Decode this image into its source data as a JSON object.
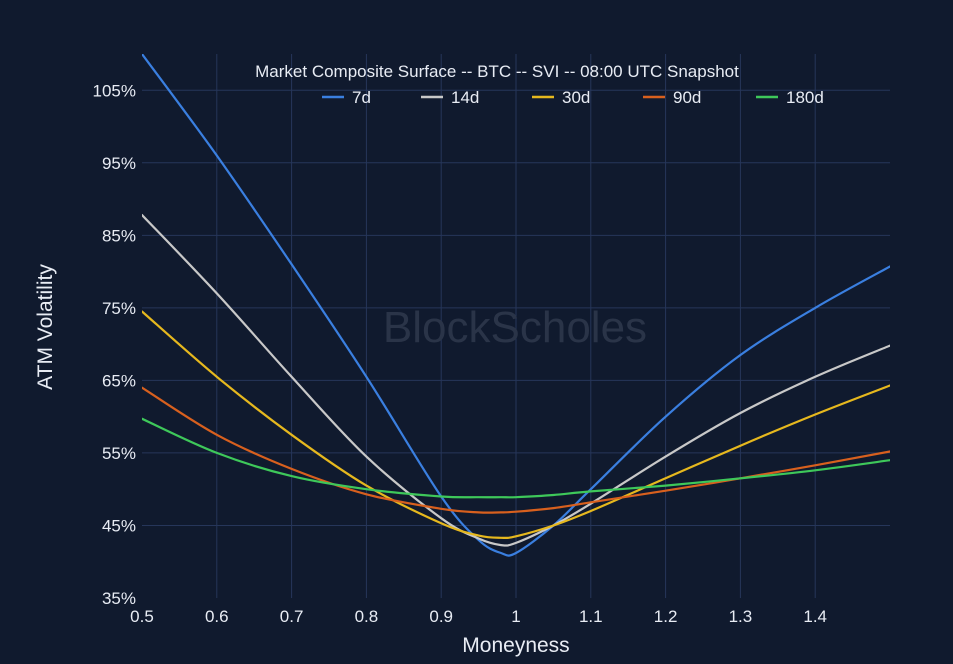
{
  "chart_data": {
    "type": "line",
    "title": "Market Composite Surface -- BTC -- SVI -- 08:00 UTC Snapshot",
    "xlabel": "Moneyness",
    "ylabel": "ATM Volatility",
    "xlim": [
      0.5,
      1.5
    ],
    "ylim": [
      35,
      110
    ],
    "xticks": [
      0.5,
      0.6,
      0.7,
      0.8,
      0.9,
      1.0,
      1.1,
      1.2,
      1.3,
      1.4
    ],
    "xtick_labels": [
      "0.5",
      "0.6",
      "0.7",
      "0.8",
      "0.9",
      "1",
      "1.1",
      "1.2",
      "1.3",
      "1.4"
    ],
    "yticks": [
      35,
      45,
      55,
      65,
      75,
      85,
      95,
      105
    ],
    "ytick_labels": [
      "35%",
      "45%",
      "55%",
      "65%",
      "75%",
      "85%",
      "95%",
      "105%"
    ],
    "grid": true,
    "legend_position": "top",
    "watermark": "BlockScholes",
    "series": [
      {
        "name": "7d",
        "color": "#3a7fe0",
        "x": [
          0.5,
          0.6,
          0.7,
          0.8,
          0.9,
          0.95,
          0.98,
          1.0,
          1.05,
          1.1,
          1.2,
          1.3,
          1.4,
          1.5
        ],
        "y": [
          110,
          96,
          81,
          65.5,
          49,
          43,
          41.2,
          41.2,
          45,
          50,
          60,
          68.5,
          75,
          80.7
        ]
      },
      {
        "name": "14d",
        "color": "#c8c8c8",
        "x": [
          0.5,
          0.6,
          0.7,
          0.8,
          0.9,
          0.95,
          0.98,
          1.0,
          1.05,
          1.1,
          1.2,
          1.3,
          1.4,
          1.5
        ],
        "y": [
          87.8,
          77,
          65.5,
          54.5,
          46,
          43.2,
          42.3,
          42.6,
          45,
          48,
          54.5,
          60.5,
          65.5,
          69.8
        ]
      },
      {
        "name": "30d",
        "color": "#e6b81e",
        "x": [
          0.5,
          0.6,
          0.7,
          0.8,
          0.9,
          0.95,
          0.98,
          1.0,
          1.05,
          1.1,
          1.2,
          1.3,
          1.4,
          1.5
        ],
        "y": [
          74.5,
          65.5,
          57.5,
          50.5,
          45.3,
          43.6,
          43.3,
          43.5,
          45,
          47,
          51.5,
          56,
          60.3,
          64.3
        ]
      },
      {
        "name": "90d",
        "color": "#d8601e",
        "x": [
          0.5,
          0.6,
          0.7,
          0.8,
          0.9,
          0.95,
          0.98,
          1.0,
          1.05,
          1.1,
          1.2,
          1.3,
          1.4,
          1.5
        ],
        "y": [
          64,
          57.5,
          52.8,
          49.3,
          47.3,
          46.8,
          46.8,
          46.9,
          47.4,
          48.2,
          49.8,
          51.5,
          53.3,
          55.2
        ]
      },
      {
        "name": "180d",
        "color": "#3ec85a",
        "x": [
          0.5,
          0.6,
          0.7,
          0.8,
          0.9,
          0.95,
          0.98,
          1.0,
          1.05,
          1.1,
          1.2,
          1.3,
          1.4,
          1.5
        ],
        "y": [
          59.7,
          55,
          51.8,
          50,
          49,
          48.9,
          48.9,
          48.9,
          49.2,
          49.7,
          50.5,
          51.5,
          52.6,
          54
        ]
      }
    ]
  }
}
